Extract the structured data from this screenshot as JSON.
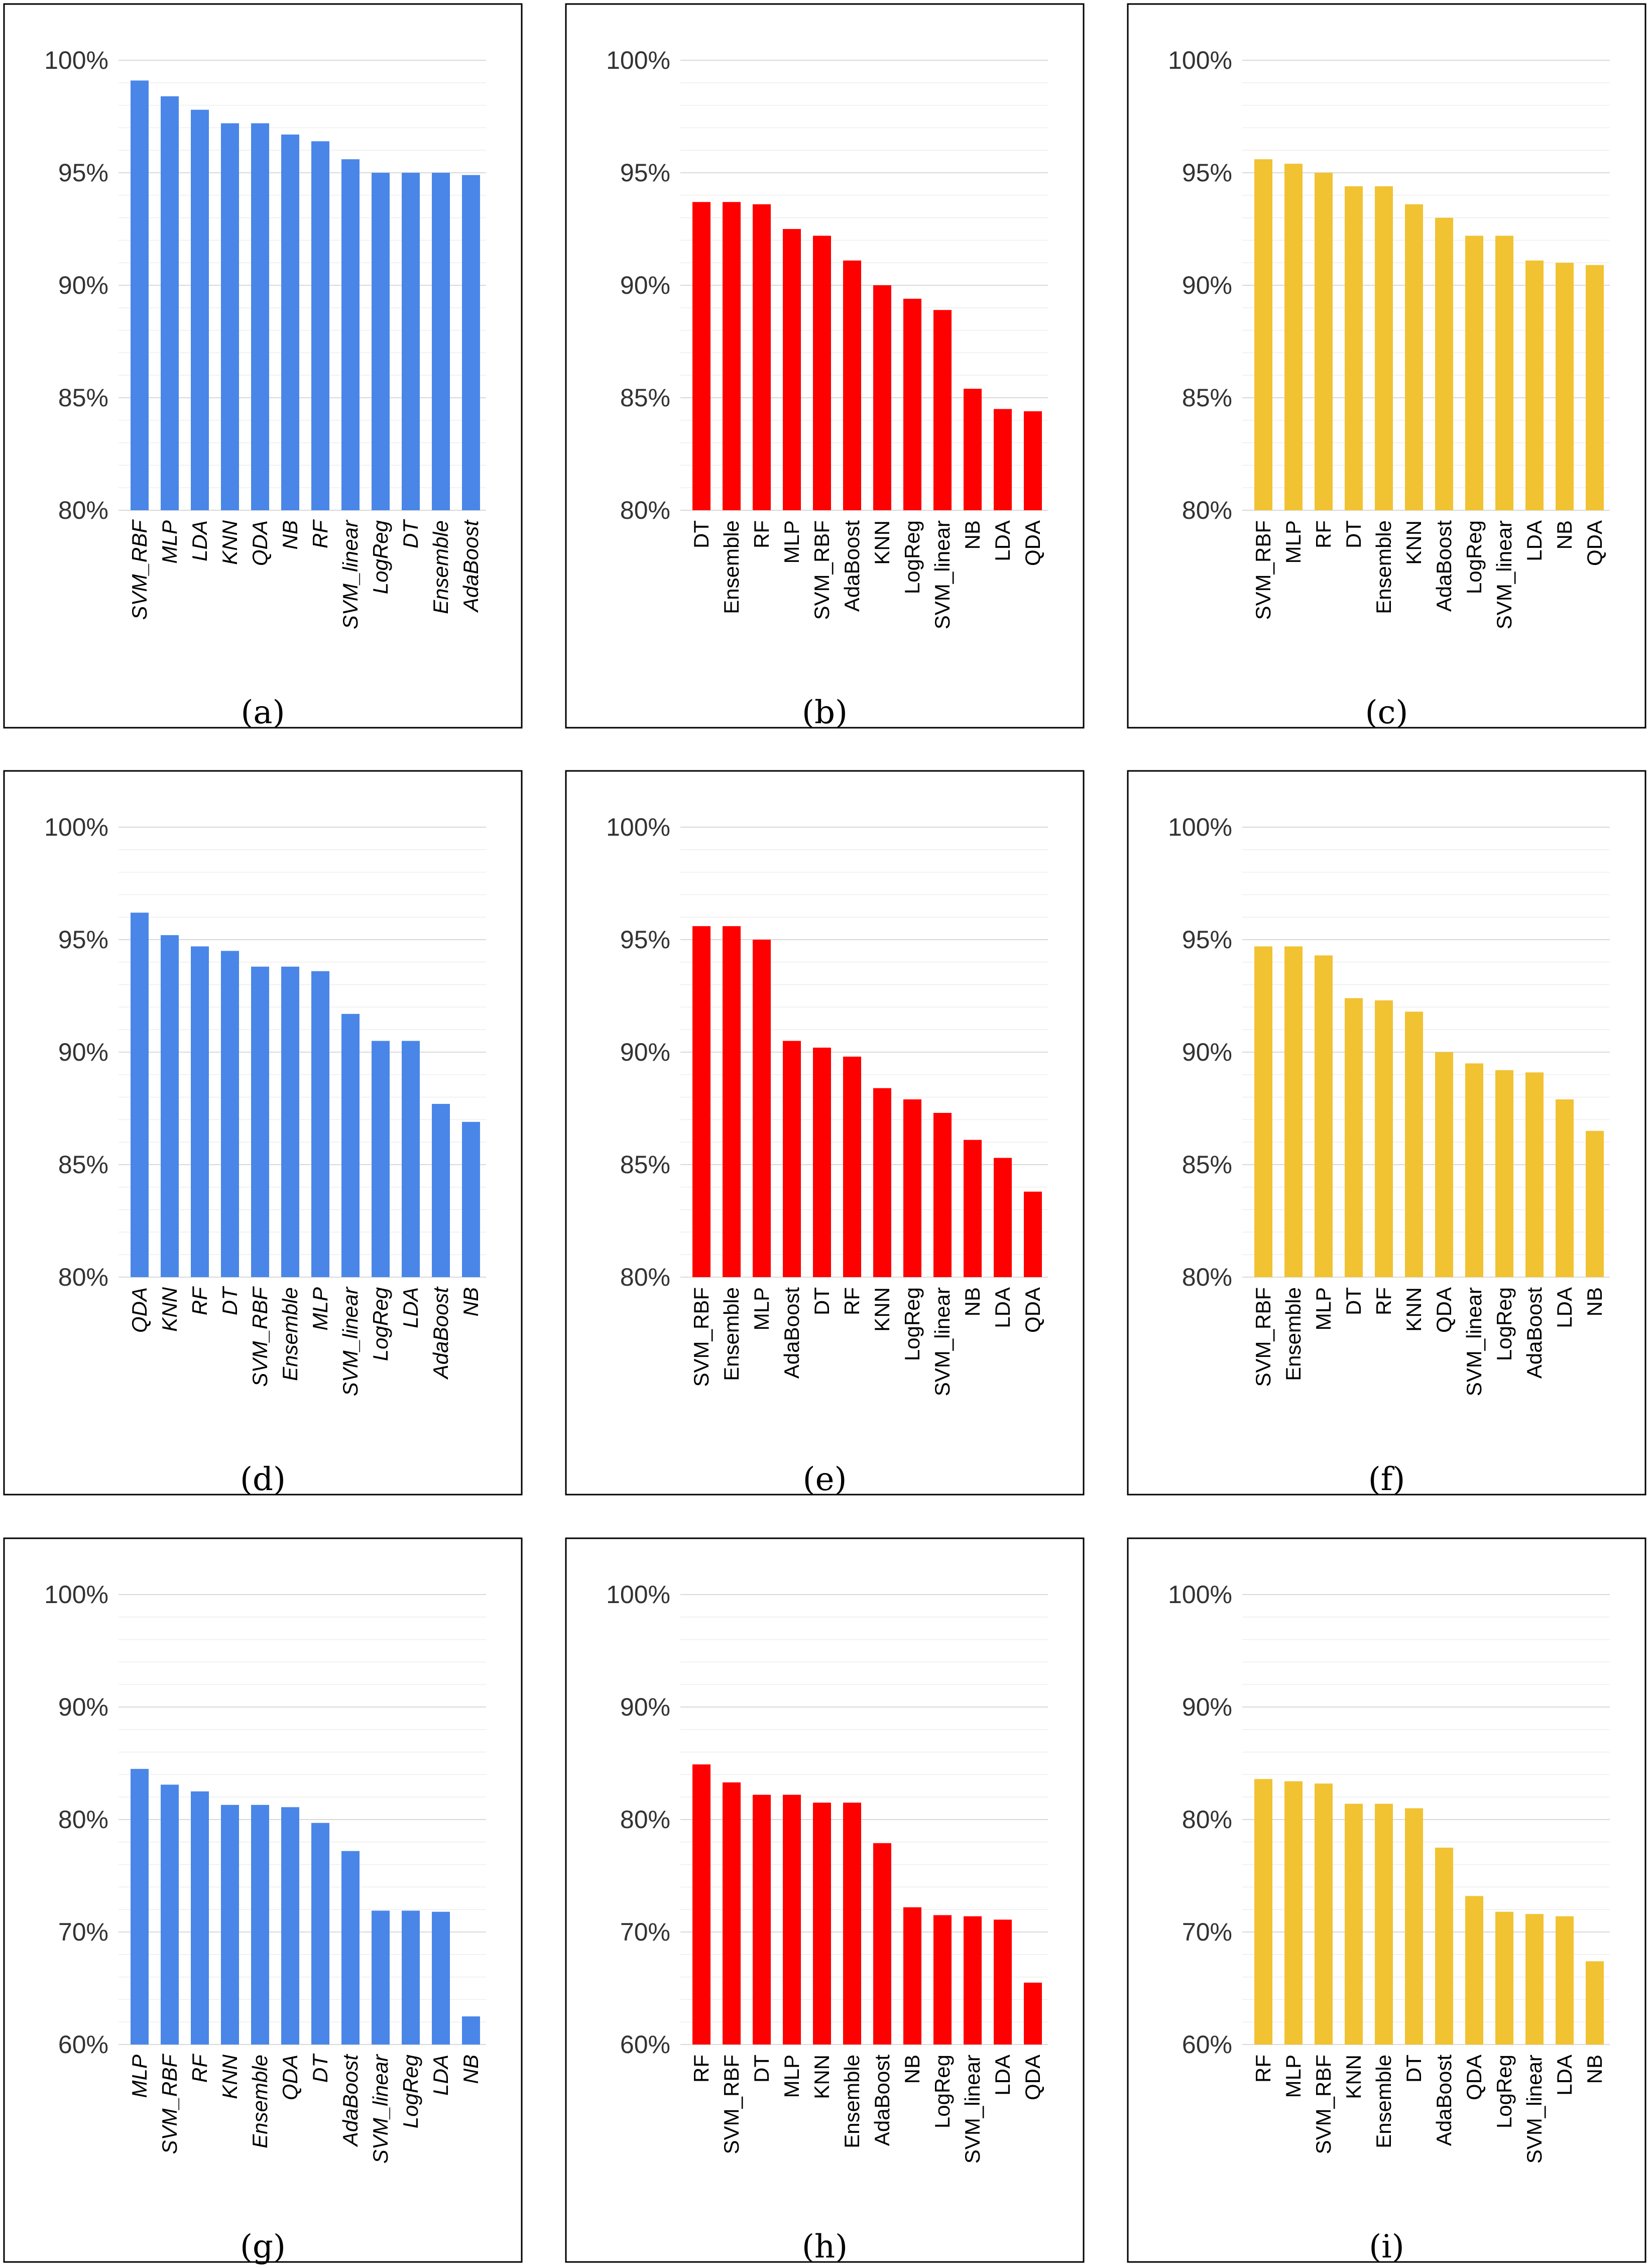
{
  "colors": {
    "blue": "#4A86E8",
    "red": "#FF0000",
    "yellow": "#F1C232"
  },
  "chart_data": [
    {
      "id": "a",
      "type": "bar",
      "label": "(a)",
      "color": "#4A86E8",
      "italic": true,
      "ylim": [
        80,
        100
      ],
      "ticks": [
        "80%",
        "85%",
        "90%",
        "95%",
        "100%"
      ],
      "categories": [
        "SVM_RBF",
        "MLP",
        "LDA",
        "KNN",
        "QDA",
        "NB",
        "RF",
        "SVM_linear",
        "LogReg",
        "DT",
        "Ensemble",
        "AdaBoost"
      ],
      "values": [
        99.1,
        98.4,
        97.8,
        97.2,
        97.2,
        96.7,
        96.4,
        95.6,
        95.0,
        95.0,
        95.0,
        94.9
      ]
    },
    {
      "id": "b",
      "type": "bar",
      "label": "(b)",
      "color": "#FF0000",
      "italic": false,
      "ylim": [
        80,
        100
      ],
      "ticks": [
        "80%",
        "85%",
        "90%",
        "95%",
        "100%"
      ],
      "categories": [
        "DT",
        "Ensemble",
        "RF",
        "MLP",
        "SVM_RBF",
        "AdaBoost",
        "KNN",
        "LogReg",
        "SVM_linear",
        "NB",
        "LDA",
        "QDA"
      ],
      "values": [
        93.7,
        93.7,
        93.6,
        92.5,
        92.2,
        91.1,
        90.0,
        89.4,
        88.9,
        85.4,
        84.5,
        84.4
      ]
    },
    {
      "id": "c",
      "type": "bar",
      "label": "(c)",
      "color": "#F1C232",
      "italic": false,
      "ylim": [
        80,
        100
      ],
      "ticks": [
        "80%",
        "85%",
        "90%",
        "95%",
        "100%"
      ],
      "categories": [
        "SVM_RBF",
        "MLP",
        "RF",
        "DT",
        "Ensemble",
        "KNN",
        "AdaBoost",
        "LogReg",
        "SVM_linear",
        "LDA",
        "NB",
        "QDA"
      ],
      "values": [
        95.6,
        95.4,
        95.0,
        94.4,
        94.4,
        93.6,
        93.0,
        92.2,
        92.2,
        91.1,
        91.0,
        90.9
      ]
    },
    {
      "id": "d",
      "type": "bar",
      "label": "(d)",
      "color": "#4A86E8",
      "italic": true,
      "ylim": [
        80,
        100
      ],
      "ticks": [
        "80%",
        "85%",
        "90%",
        "95%",
        "100%"
      ],
      "categories": [
        "QDA",
        "KNN",
        "RF",
        "DT",
        "SVM_RBF",
        "Ensemble",
        "MLP",
        "SVM_linear",
        "LogReg",
        "LDA",
        "AdaBoost",
        "NB"
      ],
      "values": [
        96.2,
        95.2,
        94.7,
        94.5,
        93.8,
        93.8,
        93.6,
        91.7,
        90.5,
        90.5,
        87.7,
        86.9
      ]
    },
    {
      "id": "e",
      "type": "bar",
      "label": "(e)",
      "color": "#FF0000",
      "italic": false,
      "ylim": [
        80,
        100
      ],
      "ticks": [
        "80%",
        "85%",
        "90%",
        "95%",
        "100%"
      ],
      "categories": [
        "SVM_RBF",
        "Ensemble",
        "MLP",
        "AdaBoost",
        "DT",
        "RF",
        "KNN",
        "LogReg",
        "SVM_linear",
        "NB",
        "LDA",
        "QDA"
      ],
      "values": [
        95.6,
        95.6,
        95.0,
        90.5,
        90.2,
        89.8,
        88.4,
        87.9,
        87.3,
        86.1,
        85.3,
        83.8
      ]
    },
    {
      "id": "f",
      "type": "bar",
      "label": "(f)",
      "color": "#F1C232",
      "italic": false,
      "ylim": [
        80,
        100
      ],
      "ticks": [
        "80%",
        "85%",
        "90%",
        "95%",
        "100%"
      ],
      "categories": [
        "SVM_RBF",
        "Ensemble",
        "MLP",
        "DT",
        "RF",
        "KNN",
        "QDA",
        "SVM_linear",
        "LogReg",
        "AdaBoost",
        "LDA",
        "NB"
      ],
      "values": [
        94.7,
        94.7,
        94.3,
        92.4,
        92.3,
        91.8,
        90.0,
        89.5,
        89.2,
        89.1,
        87.9,
        86.5
      ]
    },
    {
      "id": "g",
      "type": "bar",
      "label": "(g)",
      "color": "#4A86E8",
      "italic": true,
      "ylim": [
        60,
        100
      ],
      "ticks": [
        "60%",
        "70%",
        "80%",
        "90%",
        "100%"
      ],
      "categories": [
        "MLP",
        "SVM_RBF",
        "RF",
        "KNN",
        "Ensemble",
        "QDA",
        "DT",
        "AdaBoost",
        "SVM_linear",
        "LogReg",
        "LDA",
        "NB"
      ],
      "values": [
        84.5,
        83.1,
        82.5,
        81.3,
        81.3,
        81.1,
        79.7,
        77.2,
        71.9,
        71.9,
        71.8,
        62.5
      ]
    },
    {
      "id": "h",
      "type": "bar",
      "label": "(h)",
      "color": "#FF0000",
      "italic": false,
      "ylim": [
        60,
        100
      ],
      "ticks": [
        "60%",
        "70%",
        "80%",
        "90%",
        "100%"
      ],
      "categories": [
        "RF",
        "SVM_RBF",
        "DT",
        "MLP",
        "KNN",
        "Ensemble",
        "AdaBoost",
        "NB",
        "LogReg",
        "SVM_linear",
        "LDA",
        "QDA"
      ],
      "values": [
        84.9,
        83.3,
        82.2,
        82.2,
        81.5,
        81.5,
        77.9,
        72.2,
        71.5,
        71.4,
        71.1,
        65.5
      ]
    },
    {
      "id": "i",
      "type": "bar",
      "label": "(i)",
      "color": "#F1C232",
      "italic": false,
      "ylim": [
        60,
        100
      ],
      "ticks": [
        "60%",
        "70%",
        "80%",
        "90%",
        "100%"
      ],
      "categories": [
        "RF",
        "MLP",
        "SVM_RBF",
        "KNN",
        "Ensemble",
        "DT",
        "AdaBoost",
        "QDA",
        "LogReg",
        "SVM_linear",
        "LDA",
        "NB"
      ],
      "values": [
        83.6,
        83.4,
        83.2,
        81.4,
        81.4,
        81.0,
        77.5,
        73.2,
        71.8,
        71.6,
        71.4,
        67.4
      ]
    }
  ]
}
